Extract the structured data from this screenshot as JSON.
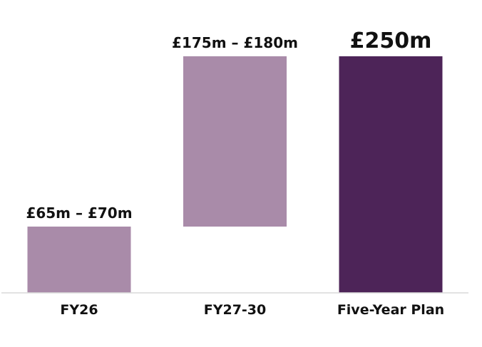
{
  "chart_data": {
    "type": "bar",
    "subtype": "waterfall",
    "title": "",
    "xlabel": "",
    "ylabel": "",
    "ylim": [
      0,
      250
    ],
    "grid": false,
    "legend": "none",
    "categories": [
      "FY26",
      "FY27-30",
      "Five-Year Plan"
    ],
    "bars": [
      {
        "category": "FY26",
        "start": 0,
        "end": 70,
        "label": "£65m – £70m",
        "color": "#a98ba9"
      },
      {
        "category": "FY27-30",
        "start": 70,
        "end": 250,
        "label": "£175m – £180m",
        "color": "#a98ba9"
      },
      {
        "category": "Five-Year Plan",
        "start": 0,
        "end": 250,
        "label": "£250m",
        "color": "#4d2458"
      }
    ]
  }
}
